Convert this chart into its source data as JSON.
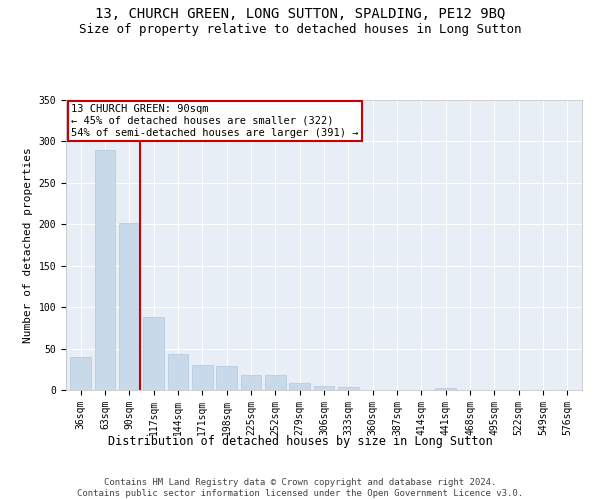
{
  "title": "13, CHURCH GREEN, LONG SUTTON, SPALDING, PE12 9BQ",
  "subtitle": "Size of property relative to detached houses in Long Sutton",
  "xlabel": "Distribution of detached houses by size in Long Sutton",
  "ylabel": "Number of detached properties",
  "categories": [
    "36sqm",
    "63sqm",
    "90sqm",
    "117sqm",
    "144sqm",
    "171sqm",
    "198sqm",
    "225sqm",
    "252sqm",
    "279sqm",
    "306sqm",
    "333sqm",
    "360sqm",
    "387sqm",
    "414sqm",
    "441sqm",
    "468sqm",
    "495sqm",
    "522sqm",
    "549sqm",
    "576sqm"
  ],
  "values": [
    40,
    290,
    202,
    88,
    43,
    30,
    29,
    18,
    18,
    8,
    5,
    4,
    0,
    0,
    0,
    3,
    0,
    0,
    0,
    0,
    0
  ],
  "bar_color": "#c8daea",
  "bar_edge_color": "#b0c8e0",
  "highlight_index": 2,
  "red_line_color": "#cc0000",
  "annotation_text": "13 CHURCH GREEN: 90sqm\n← 45% of detached houses are smaller (322)\n54% of semi-detached houses are larger (391) →",
  "annotation_box_facecolor": "white",
  "annotation_box_edgecolor": "#cc0000",
  "ylim": [
    0,
    350
  ],
  "yticks": [
    0,
    50,
    100,
    150,
    200,
    250,
    300,
    350
  ],
  "background_color": "#e8eef6",
  "grid_color": "#ffffff",
  "footer_line1": "Contains HM Land Registry data © Crown copyright and database right 2024.",
  "footer_line2": "Contains public sector information licensed under the Open Government Licence v3.0.",
  "title_fontsize": 10,
  "subtitle_fontsize": 9,
  "xlabel_fontsize": 8.5,
  "ylabel_fontsize": 8,
  "tick_fontsize": 7,
  "annotation_fontsize": 7.5,
  "footer_fontsize": 6.5
}
